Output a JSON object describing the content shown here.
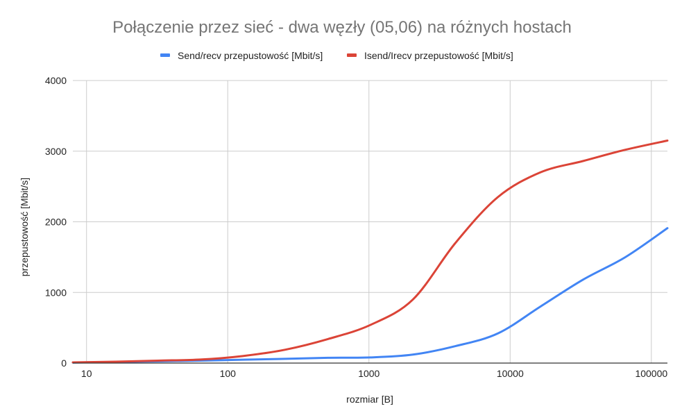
{
  "chart_data": {
    "type": "line",
    "title": "Połączenie przez sieć - dwa węzły (05,06) na różnych hostach",
    "xlabel": "rozmiar [B]",
    "ylabel": "przepustowość [Mbit/s]",
    "x_scale": "log",
    "xlim": [
      8,
      130000
    ],
    "ylim": [
      0,
      4000
    ],
    "x_ticks": [
      10,
      100,
      1000,
      10000,
      100000
    ],
    "x_tick_labels": [
      "10",
      "100",
      "1000",
      "10000",
      "100000"
    ],
    "y_ticks": [
      0,
      1000,
      2000,
      3000,
      4000
    ],
    "y_tick_labels": [
      "0",
      "1000",
      "2000",
      "3000",
      "4000"
    ],
    "grid": true,
    "legend_position": "top",
    "series": [
      {
        "name": "Send/recv przepustowość [Mbit/s]",
        "color": "#4285f4",
        "x": [
          8,
          16,
          32,
          64,
          128,
          256,
          512,
          1024,
          2048,
          4096,
          8192,
          16384,
          32768,
          65536,
          131072
        ],
        "y": [
          8,
          15,
          25,
          35,
          48,
          60,
          75,
          80,
          120,
          240,
          420,
          800,
          1180,
          1500,
          1910
        ]
      },
      {
        "name": "Isend/Irecv przepustowość [Mbit/s]",
        "color": "#db4437",
        "x": [
          8,
          16,
          32,
          64,
          128,
          256,
          512,
          1024,
          2048,
          4096,
          8192,
          16384,
          32768,
          65536,
          131072
        ],
        "y": [
          10,
          20,
          35,
          50,
          100,
          190,
          340,
          540,
          900,
          1700,
          2350,
          2700,
          2860,
          3020,
          3150
        ]
      }
    ]
  }
}
